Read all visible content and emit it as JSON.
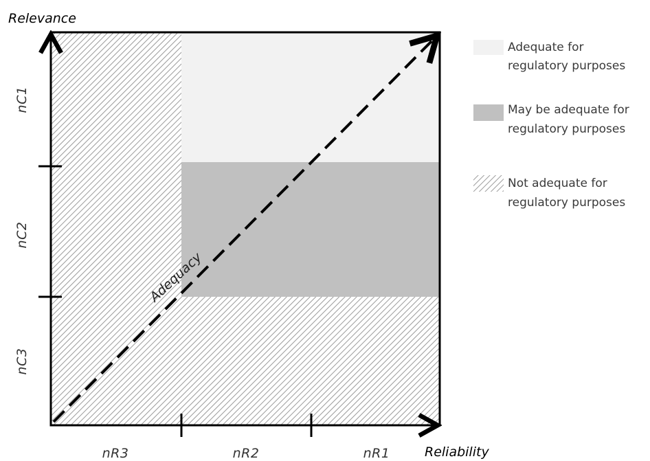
{
  "axes": {
    "y_title": "Relevance",
    "x_title": "Reliability",
    "y_ticks": [
      "nC1",
      "nC2",
      "nC3"
    ],
    "x_ticks": [
      "nR3",
      "nR2",
      "nR1"
    ]
  },
  "diagonal": {
    "label": "Adequacy"
  },
  "legend": [
    {
      "line1": "Adequate for",
      "line2": "regulatory purposes",
      "color": "#f2f2f2",
      "pattern": "solid"
    },
    {
      "line1": "May be adequate for",
      "line2": "regulatory purposes",
      "color": "#c0c0c0",
      "pattern": "solid"
    },
    {
      "line1": "Not adequate for",
      "line2": "regulatory purposes",
      "color": "#bdbdbd",
      "pattern": "hatched"
    }
  ]
}
